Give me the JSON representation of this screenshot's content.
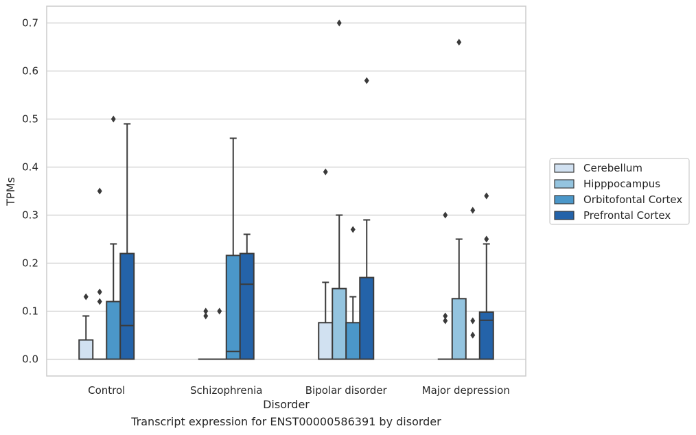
{
  "chart_data": {
    "type": "box",
    "xlabel": "Disorder",
    "ylabel": "TPMs",
    "ylim": [
      -0.035,
      0.735
    ],
    "yticks": [
      0.0,
      0.1,
      0.2,
      0.3,
      0.4,
      0.5,
      0.6,
      0.7
    ],
    "ytick_labels": [
      "0.0",
      "0.1",
      "0.2",
      "0.3",
      "0.4",
      "0.5",
      "0.6",
      "0.7"
    ],
    "grid": "horizontal",
    "legend_position": "right",
    "categories": [
      "Control",
      "Schizophrenia",
      "Bipolar disorder",
      "Major depression"
    ],
    "series": [
      {
        "name": "Cerebellum",
        "color": "#d1e1f1",
        "boxes": [
          {
            "q1": 0.0,
            "median": 0.0,
            "q3": 0.04,
            "whisker_low": 0.0,
            "whisker_high": 0.09,
            "outliers": [
              0.13
            ]
          },
          {
            "q1": 0.0,
            "median": 0.0,
            "q3": 0.0,
            "whisker_low": 0.0,
            "whisker_high": 0.0,
            "outliers": [
              0.09,
              0.1
            ]
          },
          {
            "q1": 0.0,
            "median": 0.0,
            "q3": 0.076,
            "whisker_low": 0.0,
            "whisker_high": 0.16,
            "outliers": [
              0.39
            ]
          },
          {
            "q1": 0.0,
            "median": 0.0,
            "q3": 0.0,
            "whisker_low": 0.0,
            "whisker_high": 0.0,
            "outliers": [
              0.08,
              0.09,
              0.3
            ]
          }
        ]
      },
      {
        "name": "Hipppocampus",
        "color": "#94c4df",
        "boxes": [
          {
            "q1": 0.0,
            "median": 0.0,
            "q3": 0.0,
            "whisker_low": 0.0,
            "whisker_high": 0.0,
            "outliers": [
              0.12,
              0.14,
              0.35
            ]
          },
          {
            "q1": 0.0,
            "median": 0.0,
            "q3": 0.0,
            "whisker_low": 0.0,
            "whisker_high": 0.0,
            "outliers": [
              0.1
            ]
          },
          {
            "q1": 0.0,
            "median": 0.0,
            "q3": 0.147,
            "whisker_low": 0.0,
            "whisker_high": 0.3,
            "outliers": [
              0.7
            ]
          },
          {
            "q1": 0.0,
            "median": 0.0,
            "q3": 0.126,
            "whisker_low": 0.0,
            "whisker_high": 0.25,
            "outliers": [
              0.66
            ]
          }
        ]
      },
      {
        "name": "Orbitofontal Cortex",
        "color": "#4b97c9",
        "boxes": [
          {
            "q1": 0.0,
            "median": 0.0,
            "q3": 0.12,
            "whisker_low": 0.0,
            "whisker_high": 0.24,
            "outliers": [
              0.5
            ]
          },
          {
            "q1": 0.0,
            "median": 0.016,
            "q3": 0.216,
            "whisker_low": 0.0,
            "whisker_high": 0.46,
            "outliers": []
          },
          {
            "q1": 0.0,
            "median": 0.0,
            "q3": 0.076,
            "whisker_low": 0.0,
            "whisker_high": 0.13,
            "outliers": [
              0.27
            ]
          },
          {
            "q1": 0.0,
            "median": 0.0,
            "q3": 0.0,
            "whisker_low": 0.0,
            "whisker_high": 0.0,
            "outliers": [
              0.05,
              0.08,
              0.31
            ]
          }
        ]
      },
      {
        "name": "Prefrontal Cortex",
        "color": "#2463a9",
        "boxes": [
          {
            "q1": 0.0,
            "median": 0.07,
            "q3": 0.22,
            "whisker_low": 0.0,
            "whisker_high": 0.49,
            "outliers": []
          },
          {
            "q1": 0.0,
            "median": 0.156,
            "q3": 0.22,
            "whisker_low": 0.0,
            "whisker_high": 0.26,
            "outliers": []
          },
          {
            "q1": 0.0,
            "median": 0.0,
            "q3": 0.17,
            "whisker_low": 0.0,
            "whisker_high": 0.29,
            "outliers": [
              0.58
            ]
          },
          {
            "q1": 0.0,
            "median": 0.081,
            "q3": 0.098,
            "whisker_low": 0.0,
            "whisker_high": 0.24,
            "outliers": [
              0.25,
              0.34
            ]
          }
        ]
      }
    ]
  },
  "caption": "Transcript expression for ENST00000586391 by disorder"
}
